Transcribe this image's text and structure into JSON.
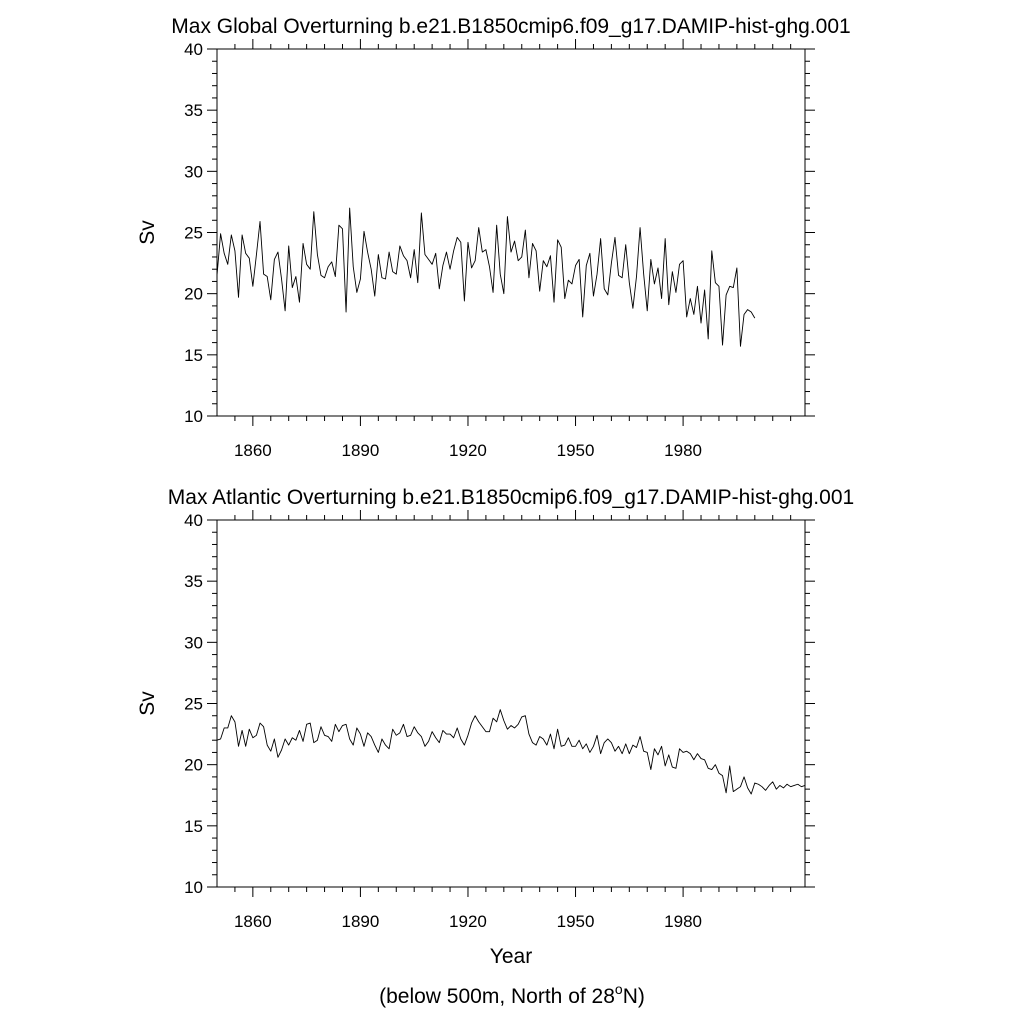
{
  "chart_data": [
    {
      "type": "line",
      "title": "Max Global Overturning b.e21.B1850cmip6.f09_g17.DAMIP-hist-ghg.001",
      "ylabel": "Sv",
      "xlabel": "",
      "xlim": [
        1850,
        2014
      ],
      "ylim": [
        10,
        40
      ],
      "x_ticks": [
        1860,
        1890,
        1920,
        1950,
        1980
      ],
      "y_ticks": [
        10,
        15,
        20,
        25,
        30,
        35,
        40
      ],
      "grid": false,
      "series": [
        {
          "color": "#000000",
          "x_start": 1850,
          "x_step": 1,
          "values": [
            21.5,
            24.9,
            23.3,
            22.4,
            24.8,
            23.5,
            19.7,
            24.8,
            23.3,
            22.9,
            20.6,
            23.2,
            25.9,
            21.6,
            21.4,
            19.5,
            22.8,
            23.4,
            21.2,
            18.6,
            23.9,
            20.5,
            21.4,
            19.3,
            24.1,
            22.4,
            22.0,
            26.7,
            23.2,
            21.5,
            21.3,
            22.2,
            22.6,
            21.4,
            25.6,
            25.3,
            18.5,
            27.0,
            22.2,
            20.1,
            21.2,
            25.1,
            23.4,
            22.0,
            19.8,
            23.2,
            21.3,
            21.2,
            23.4,
            21.8,
            21.6,
            23.9,
            23.1,
            22.7,
            21.3,
            23.6,
            20.9,
            26.6,
            23.2,
            22.8,
            22.4,
            23.3,
            20.4,
            22.3,
            23.4,
            22.0,
            23.5,
            24.6,
            24.2,
            19.4,
            24.2,
            22.1,
            22.7,
            25.4,
            23.4,
            23.6,
            22.2,
            20.1,
            25.6,
            21.6,
            20.0,
            26.3,
            23.4,
            24.3,
            22.7,
            23.0,
            25.2,
            21.3,
            24.1,
            23.5,
            20.2,
            22.7,
            22.2,
            23.1,
            19.3,
            24.4,
            23.8,
            19.6,
            21.1,
            20.8,
            22.3,
            22.8,
            18.1,
            22.3,
            23.3,
            19.8,
            21.6,
            24.5,
            20.4,
            19.9,
            22.5,
            24.6,
            21.5,
            21.3,
            24.0,
            20.9,
            18.8,
            21.4,
            25.4,
            21.6,
            18.6,
            22.8,
            20.8,
            22.1,
            19.6,
            24.5,
            19.1,
            21.8,
            20.1,
            22.4,
            22.7,
            18.1,
            19.6,
            18.3,
            20.6,
            17.6,
            20.3,
            16.3,
            23.5,
            20.9,
            20.6,
            15.8,
            19.9,
            20.6,
            20.5,
            22.1,
            15.7,
            18.3,
            18.7,
            18.5,
            18.0
          ]
        }
      ]
    },
    {
      "type": "line",
      "title": "Max Atlantic Overturning b.e21.B1850cmip6.f09_g17.DAMIP-hist-ghg.001",
      "ylabel": "Sv",
      "xlabel": "Year",
      "xlim": [
        1850,
        2014
      ],
      "ylim": [
        10,
        40
      ],
      "x_ticks": [
        1860,
        1890,
        1920,
        1950,
        1980
      ],
      "y_ticks": [
        10,
        15,
        20,
        25,
        30,
        35,
        40
      ],
      "grid": false,
      "series": [
        {
          "color": "#000000",
          "x_start": 1850,
          "x_step": 1,
          "values": [
            22.0,
            22.1,
            23.0,
            23.0,
            24.0,
            23.5,
            21.5,
            22.8,
            21.5,
            22.9,
            22.2,
            22.4,
            23.4,
            23.1,
            21.6,
            21.1,
            22.1,
            20.6,
            21.2,
            22.1,
            21.6,
            22.2,
            22.0,
            22.8,
            21.9,
            23.3,
            23.4,
            21.8,
            22.0,
            23.1,
            22.4,
            22.3,
            21.9,
            23.3,
            22.7,
            23.2,
            23.3,
            22.1,
            21.6,
            23.0,
            22.5,
            21.5,
            22.6,
            22.3,
            21.6,
            21.0,
            22.1,
            21.6,
            21.3,
            22.9,
            22.4,
            22.6,
            23.3,
            22.3,
            22.4,
            23.1,
            22.6,
            22.3,
            21.5,
            21.9,
            22.7,
            22.2,
            21.8,
            22.8,
            22.5,
            22.5,
            22.2,
            23.0,
            22.1,
            21.6,
            22.4,
            23.4,
            24.0,
            23.5,
            23.1,
            22.7,
            22.7,
            23.8,
            23.5,
            24.5,
            23.6,
            22.9,
            23.2,
            23.0,
            23.3,
            23.9,
            24.0,
            22.5,
            21.8,
            21.6,
            22.3,
            22.1,
            21.6,
            22.5,
            21.3,
            22.9,
            21.5,
            21.6,
            22.2,
            21.5,
            21.5,
            22.0,
            21.3,
            21.7,
            21.0,
            21.5,
            22.4,
            20.9,
            21.8,
            22.1,
            21.8,
            21.1,
            21.5,
            20.9,
            21.7,
            20.9,
            21.6,
            21.4,
            22.3,
            21.1,
            21.0,
            19.6,
            21.3,
            20.8,
            21.5,
            19.9,
            20.8,
            19.8,
            19.7,
            21.3,
            21.0,
            21.1,
            20.9,
            20.4,
            20.9,
            20.5,
            20.4,
            19.7,
            19.6,
            20.0,
            19.3,
            19.1,
            17.7,
            19.9,
            17.8,
            18.0,
            18.2,
            19.0,
            18.1,
            17.6,
            18.5,
            18.4,
            18.2,
            17.9,
            18.3,
            18.6,
            18.0,
            18.3,
            18.1,
            18.4,
            18.2,
            18.3,
            18.4,
            18.2,
            18.3
          ]
        }
      ]
    }
  ],
  "footer": {
    "prefix": "(below 500m, North of 28",
    "sup": "o",
    "suffix": "N)"
  }
}
